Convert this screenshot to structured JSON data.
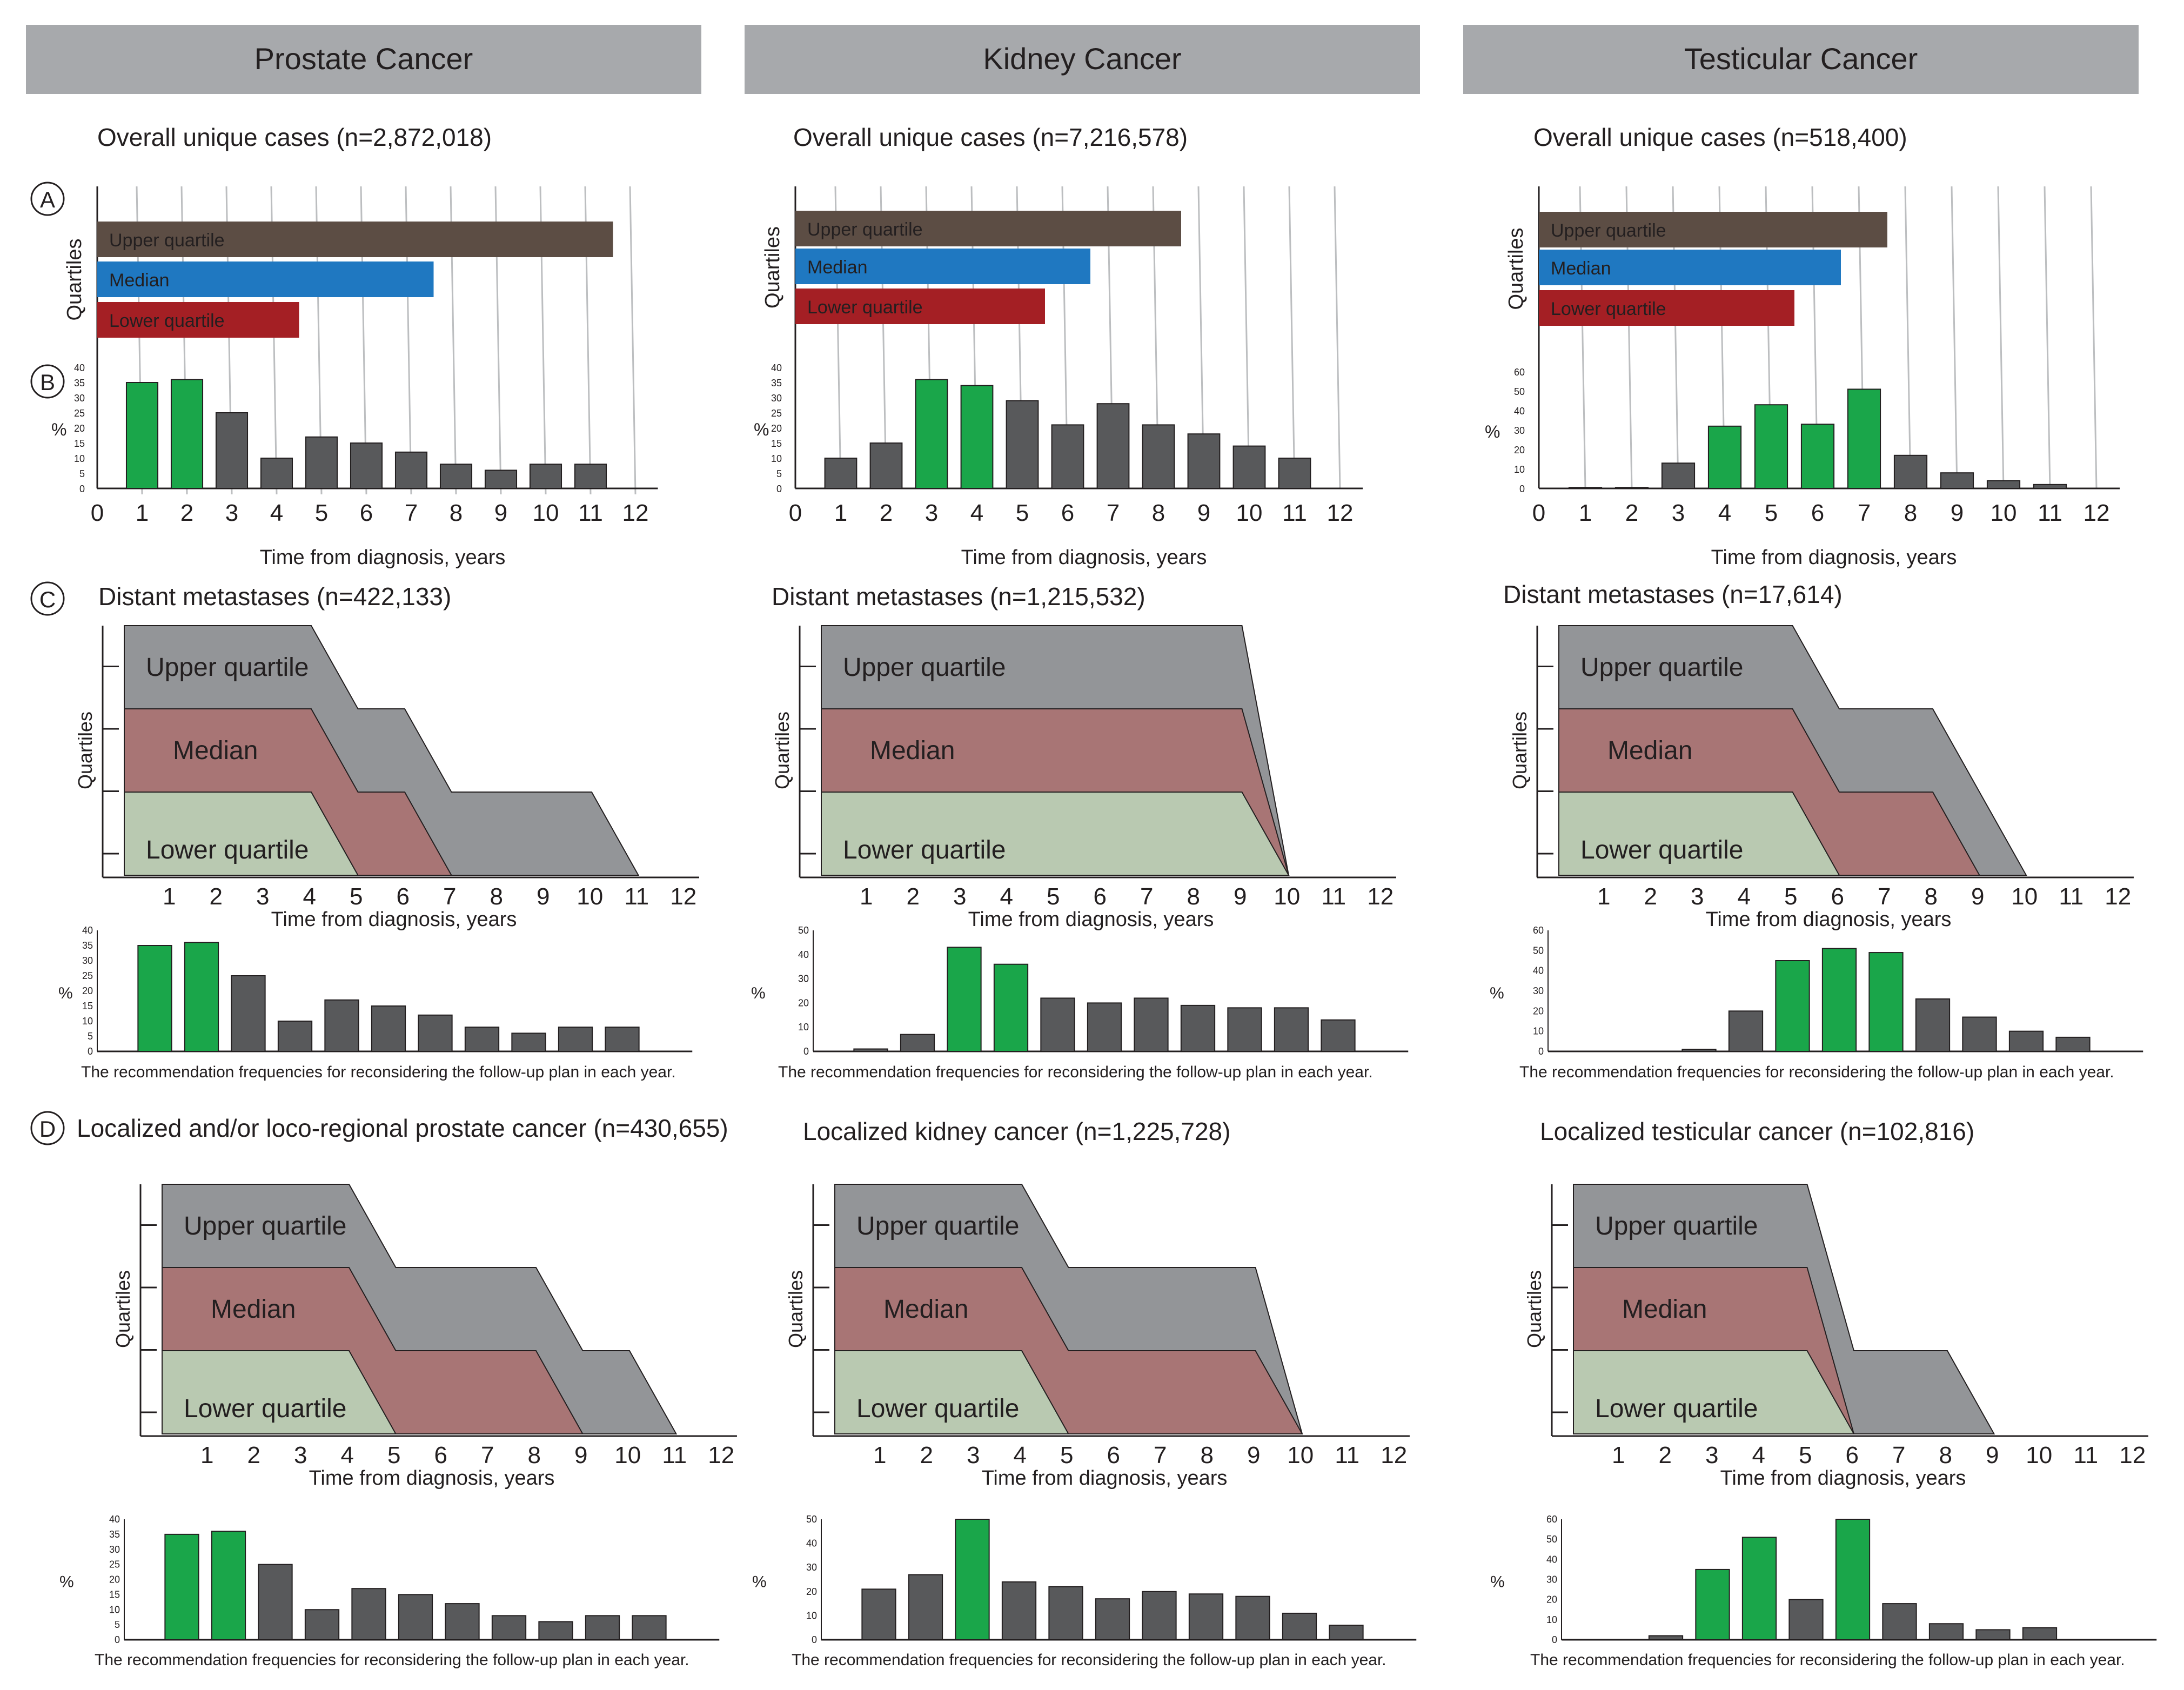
{
  "colors": {
    "header": "#a7a9ac",
    "upper_bar": "#5c4d44",
    "median_bar": "#1f78c1",
    "lower_bar": "#a41f24",
    "area_upper": "#939598",
    "area_median": "#a87575",
    "area_lower": "#b9c9b1",
    "bar_green": "#1aa64a",
    "bar_dark": "#58595b",
    "grid": "#bcbec0",
    "axis": "#231f20"
  },
  "panel_letters": {
    "A": "A",
    "B": "B",
    "C": "C",
    "D": "D"
  },
  "labels": {
    "quartiles": "Quartiles",
    "upper": "Upper quartile",
    "median": "Median",
    "lower": "Lower quartile",
    "percent": "%",
    "time_axis": "Time from diagnosis, years",
    "freq_caption": "The recommendation frequencies for reconsidering the follow-up plan in each year."
  },
  "columns": [
    {
      "header": "Prostate Cancer",
      "overall_title": "Overall unique cases (n=2,872,018)",
      "metastases_title": "Distant metastases (n=422,133)",
      "localized_title": "Localized and/or loco-regional prostate cancer (n=430,655)"
    },
    {
      "header": "Kidney Cancer",
      "overall_title": "Overall unique cases (n=7,216,578)",
      "metastases_title": "Distant metastases (n=1,215,532)",
      "localized_title": "Localized kidney cancer (n=1,225,728)"
    },
    {
      "header": "Testicular Cancer",
      "overall_title": "Overall unique cases (n=518,400)",
      "metastases_title": "Distant metastases (n=17,614)",
      "localized_title": "Localized testicular cancer (n=102,816)"
    }
  ],
  "chart_data": [
    {
      "panel": "A",
      "cancer": "Prostate Cancer",
      "type": "bar",
      "orientation": "horizontal",
      "title": "Overall unique cases (n=2,872,018)",
      "xlabel": "Time from diagnosis, years",
      "ylabel": "Quartiles",
      "xlim": [
        0,
        12
      ],
      "categories": [
        "Upper quartile",
        "Median",
        "Lower quartile"
      ],
      "values": [
        11.5,
        7.5,
        4.5
      ]
    },
    {
      "panel": "A",
      "cancer": "Kidney Cancer",
      "type": "bar",
      "orientation": "horizontal",
      "title": "Overall unique cases (n=7,216,578)",
      "xlabel": "Time from diagnosis, years",
      "ylabel": "Quartiles",
      "xlim": [
        0,
        12
      ],
      "categories": [
        "Upper quartile",
        "Median",
        "Lower quartile"
      ],
      "values": [
        8.5,
        6.5,
        5.5
      ]
    },
    {
      "panel": "A",
      "cancer": "Testicular Cancer",
      "type": "bar",
      "orientation": "horizontal",
      "title": "Overall unique cases (n=518,400)",
      "xlabel": "Time from diagnosis, years",
      "ylabel": "Quartiles",
      "xlim": [
        0,
        12
      ],
      "categories": [
        "Upper quartile",
        "Median",
        "Lower quartile"
      ],
      "values": [
        7.5,
        6.5,
        5.5
      ]
    },
    {
      "panel": "B",
      "cancer": "Prostate Cancer",
      "type": "bar",
      "xlabel": "Time from diagnosis, years",
      "ylabel": "%",
      "x": [
        0,
        1,
        2,
        3,
        4,
        5,
        6,
        7,
        8,
        9,
        10,
        11,
        12
      ],
      "ylim": [
        0,
        40
      ],
      "yticks": [
        0,
        5,
        10,
        15,
        20,
        25,
        30,
        35,
        40
      ],
      "values": [
        0,
        35,
        36,
        25,
        10,
        17,
        15,
        12,
        8,
        6,
        8,
        8,
        0
      ],
      "highlight": [
        1,
        2
      ]
    },
    {
      "panel": "B",
      "cancer": "Kidney Cancer",
      "type": "bar",
      "xlabel": "Time from diagnosis, years",
      "ylabel": "%",
      "x": [
        0,
        1,
        2,
        3,
        4,
        5,
        6,
        7,
        8,
        9,
        10,
        11,
        12
      ],
      "ylim": [
        0,
        40
      ],
      "yticks": [
        0,
        5,
        10,
        15,
        20,
        25,
        30,
        35,
        40
      ],
      "values": [
        0,
        10,
        15,
        36,
        34,
        29,
        21,
        28,
        21,
        18,
        14,
        10,
        0
      ],
      "highlight": [
        3,
        4
      ]
    },
    {
      "panel": "B",
      "cancer": "Testicular Cancer",
      "type": "bar",
      "xlabel": "Time from diagnosis, years",
      "ylabel": "%",
      "x": [
        0,
        1,
        2,
        3,
        4,
        5,
        6,
        7,
        8,
        9,
        10,
        11,
        12
      ],
      "ylim": [
        0,
        60
      ],
      "yticks": [
        0,
        10,
        20,
        30,
        40,
        50,
        60
      ],
      "values": [
        0,
        0.5,
        0.5,
        13,
        32,
        43,
        33,
        51,
        17,
        8,
        4,
        2,
        0
      ],
      "highlight": [
        4,
        5,
        6,
        7
      ]
    },
    {
      "panel": "C",
      "cancer": "Prostate Cancer",
      "type": "area",
      "title": "Distant metastases (n=422,133)",
      "xlabel": "Time from diagnosis, years",
      "ylabel": "Quartiles",
      "x": [
        1,
        2,
        3,
        4,
        5,
        6,
        7,
        8,
        9,
        10,
        11,
        12
      ],
      "series": [
        {
          "name": "Upper quartile",
          "points": [
            [
              0,
              3
            ],
            [
              4,
              3
            ],
            [
              5,
              2
            ],
            [
              6,
              2
            ],
            [
              7,
              1
            ],
            [
              10,
              1
            ],
            [
              11,
              0
            ]
          ]
        },
        {
          "name": "Median",
          "points": [
            [
              0,
              2
            ],
            [
              4,
              2
            ],
            [
              5,
              1
            ],
            [
              6,
              1
            ],
            [
              7,
              0
            ]
          ]
        },
        {
          "name": "Lower quartile",
          "points": [
            [
              0,
              1
            ],
            [
              4,
              1
            ],
            [
              5,
              0
            ]
          ]
        }
      ]
    },
    {
      "panel": "C",
      "cancer": "Kidney Cancer",
      "type": "area",
      "title": "Distant metastases (n=1,215,532)",
      "xlabel": "Time from diagnosis, years",
      "ylabel": "Quartiles",
      "x": [
        1,
        2,
        3,
        4,
        5,
        6,
        7,
        8,
        9,
        10,
        11,
        12
      ],
      "series": [
        {
          "name": "Upper quartile",
          "points": [
            [
              0,
              3
            ],
            [
              9,
              3
            ],
            [
              10,
              0
            ]
          ]
        },
        {
          "name": "Median",
          "points": [
            [
              0,
              2
            ],
            [
              9,
              2
            ],
            [
              10,
              0
            ]
          ]
        },
        {
          "name": "Lower quartile",
          "points": [
            [
              0,
              1
            ],
            [
              9,
              1
            ],
            [
              10,
              0
            ]
          ]
        }
      ]
    },
    {
      "panel": "C",
      "cancer": "Testicular Cancer",
      "type": "area",
      "title": "Distant metastases (n=17,614)",
      "xlabel": "Time from diagnosis, years",
      "ylabel": "Quartiles",
      "x": [
        1,
        2,
        3,
        4,
        5,
        6,
        7,
        8,
        9,
        10,
        11,
        12
      ],
      "series": [
        {
          "name": "Upper quartile",
          "points": [
            [
              0,
              3
            ],
            [
              5,
              3
            ],
            [
              6,
              2
            ],
            [
              8,
              2
            ],
            [
              10,
              0
            ]
          ]
        },
        {
          "name": "Median",
          "points": [
            [
              0,
              2
            ],
            [
              5,
              2
            ],
            [
              6,
              1
            ],
            [
              8,
              1
            ],
            [
              9,
              0
            ]
          ]
        },
        {
          "name": "Lower quartile",
          "points": [
            [
              0,
              1
            ],
            [
              5,
              1
            ],
            [
              6,
              0
            ]
          ]
        }
      ]
    },
    {
      "panel": "C-freq",
      "cancer": "Prostate Cancer",
      "type": "bar",
      "ylabel": "%",
      "x": [
        0,
        1,
        2,
        3,
        4,
        5,
        6,
        7,
        8,
        9,
        10,
        11,
        12
      ],
      "ylim": [
        0,
        40
      ],
      "yticks": [
        0,
        5,
        10,
        15,
        20,
        25,
        30,
        35,
        40
      ],
      "values": [
        0,
        35,
        36,
        25,
        10,
        17,
        15,
        12,
        8,
        6,
        8,
        8,
        0
      ],
      "highlight": [
        1,
        2
      ]
    },
    {
      "panel": "C-freq",
      "cancer": "Kidney Cancer",
      "type": "bar",
      "ylabel": "%",
      "x": [
        0,
        1,
        2,
        3,
        4,
        5,
        6,
        7,
        8,
        9,
        10,
        11,
        12
      ],
      "ylim": [
        0,
        50
      ],
      "yticks": [
        0,
        10,
        20,
        30,
        40,
        50
      ],
      "values": [
        0,
        1,
        7,
        43,
        36,
        22,
        20,
        22,
        19,
        18,
        18,
        13,
        0
      ],
      "highlight": [
        3,
        4
      ]
    },
    {
      "panel": "C-freq",
      "cancer": "Testicular Cancer",
      "type": "bar",
      "ylabel": "%",
      "x": [
        0,
        1,
        2,
        3,
        4,
        5,
        6,
        7,
        8,
        9,
        10,
        11,
        12
      ],
      "ylim": [
        0,
        60
      ],
      "yticks": [
        0,
        10,
        20,
        30,
        40,
        50,
        60
      ],
      "values": [
        0,
        0,
        0,
        1,
        20,
        45,
        51,
        49,
        26,
        17,
        10,
        7,
        0
      ],
      "highlight": [
        5,
        6,
        7
      ]
    },
    {
      "panel": "D",
      "cancer": "Prostate Cancer",
      "type": "area",
      "title": "Localized and/or loco-regional prostate cancer (n=430,655)",
      "xlabel": "Time from diagnosis, years",
      "ylabel": "Quartiles",
      "x": [
        1,
        2,
        3,
        4,
        5,
        6,
        7,
        8,
        9,
        10,
        11,
        12
      ],
      "series": [
        {
          "name": "Upper quartile",
          "points": [
            [
              0,
              3
            ],
            [
              4,
              3
            ],
            [
              5,
              2
            ],
            [
              8,
              2
            ],
            [
              9,
              1
            ],
            [
              10,
              1
            ],
            [
              11,
              0
            ]
          ]
        },
        {
          "name": "Median",
          "points": [
            [
              0,
              2
            ],
            [
              4,
              2
            ],
            [
              5,
              1
            ],
            [
              8,
              1
            ],
            [
              9,
              0
            ]
          ]
        },
        {
          "name": "Lower quartile",
          "points": [
            [
              0,
              1
            ],
            [
              4,
              1
            ],
            [
              5,
              0
            ]
          ]
        }
      ]
    },
    {
      "panel": "D",
      "cancer": "Kidney Cancer",
      "type": "area",
      "title": "Localized kidney cancer (n=1,225,728)",
      "xlabel": "Time from diagnosis, years",
      "ylabel": "Quartiles",
      "x": [
        1,
        2,
        3,
        4,
        5,
        6,
        7,
        8,
        9,
        10,
        11,
        12
      ],
      "series": [
        {
          "name": "Upper quartile",
          "points": [
            [
              0,
              3
            ],
            [
              4,
              3
            ],
            [
              5,
              2
            ],
            [
              9,
              2
            ],
            [
              10,
              0
            ]
          ]
        },
        {
          "name": "Median",
          "points": [
            [
              0,
              2
            ],
            [
              4,
              2
            ],
            [
              5,
              1
            ],
            [
              9,
              1
            ],
            [
              10,
              0
            ]
          ]
        },
        {
          "name": "Lower quartile",
          "points": [
            [
              0,
              1
            ],
            [
              4,
              1
            ],
            [
              5,
              0
            ]
          ]
        }
      ]
    },
    {
      "panel": "D",
      "cancer": "Testicular Cancer",
      "type": "area",
      "title": "Localized testicular cancer (n=102,816)",
      "xlabel": "Time from diagnosis, years",
      "ylabel": "Quartiles",
      "x": [
        1,
        2,
        3,
        4,
        5,
        6,
        7,
        8,
        9,
        10,
        11,
        12
      ],
      "series": [
        {
          "name": "Upper quartile",
          "points": [
            [
              0,
              3
            ],
            [
              5,
              3
            ],
            [
              6,
              1
            ],
            [
              8,
              1
            ],
            [
              9,
              0
            ]
          ]
        },
        {
          "name": "Median",
          "points": [
            [
              0,
              2
            ],
            [
              5,
              2
            ],
            [
              6,
              0
            ]
          ]
        },
        {
          "name": "Lower quartile",
          "points": [
            [
              0,
              1
            ],
            [
              5,
              1
            ],
            [
              6,
              0
            ]
          ]
        }
      ]
    },
    {
      "panel": "D-freq",
      "cancer": "Prostate Cancer",
      "type": "bar",
      "ylabel": "%",
      "x": [
        0,
        1,
        2,
        3,
        4,
        5,
        6,
        7,
        8,
        9,
        10,
        11,
        12
      ],
      "ylim": [
        0,
        40
      ],
      "yticks": [
        0,
        5,
        10,
        15,
        20,
        25,
        30,
        35,
        40
      ],
      "values": [
        0,
        35,
        36,
        25,
        10,
        17,
        15,
        12,
        8,
        6,
        8,
        8,
        0
      ],
      "highlight": [
        1,
        2
      ]
    },
    {
      "panel": "D-freq",
      "cancer": "Kidney Cancer",
      "type": "bar",
      "ylabel": "%",
      "x": [
        0,
        1,
        2,
        3,
        4,
        5,
        6,
        7,
        8,
        9,
        10,
        11,
        12
      ],
      "ylim": [
        0,
        50
      ],
      "yticks": [
        0,
        10,
        20,
        30,
        40,
        50
      ],
      "values": [
        0,
        21,
        27,
        50,
        24,
        22,
        17,
        20,
        19,
        18,
        11,
        6,
        0
      ],
      "highlight": [
        3
      ]
    },
    {
      "panel": "D-freq",
      "cancer": "Testicular Cancer",
      "type": "bar",
      "ylabel": "%",
      "x": [
        0,
        1,
        2,
        3,
        4,
        5,
        6,
        7,
        8,
        9,
        10,
        11,
        12
      ],
      "ylim": [
        0,
        60
      ],
      "yticks": [
        0,
        10,
        20,
        30,
        40,
        50,
        60
      ],
      "values": [
        0,
        0,
        2,
        35,
        51,
        20,
        60,
        18,
        8,
        5,
        6,
        0,
        0
      ],
      "highlight": [
        3,
        4,
        6
      ]
    }
  ]
}
